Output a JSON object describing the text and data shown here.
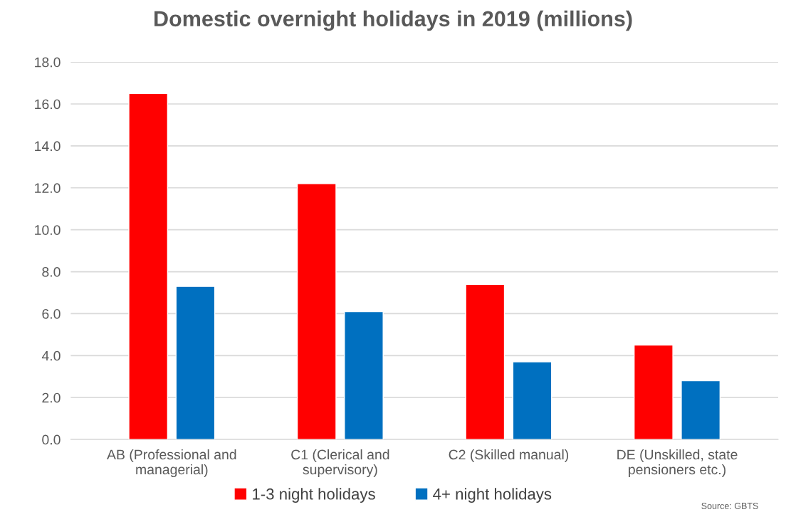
{
  "chart_data": {
    "type": "bar",
    "title": "Domestic overnight holidays in 2019 (millions)",
    "categories": [
      "AB (Professional and managerial)",
      "C1 (Clerical and supervisory)",
      "C2 (Skilled manual)",
      "DE (Unskilled, state pensioners etc.)"
    ],
    "series": [
      {
        "name": "1-3 night holidays",
        "color": "#ff0000",
        "values": [
          16.5,
          12.2,
          7.4,
          4.5
        ]
      },
      {
        "name": "4+ night holidays",
        "color": "#0070c0",
        "values": [
          7.3,
          6.1,
          3.7,
          2.8
        ]
      }
    ],
    "ylim": [
      0,
      18
    ],
    "yticks": [
      {
        "value": 0,
        "label": "0.0"
      },
      {
        "value": 2,
        "label": "2.0"
      },
      {
        "value": 4,
        "label": "4.0"
      },
      {
        "value": 6,
        "label": "6.0"
      },
      {
        "value": 8,
        "label": "8.0"
      },
      {
        "value": 10,
        "label": "10.0"
      },
      {
        "value": 12,
        "label": "12.0"
      },
      {
        "value": 14,
        "label": "14.0"
      },
      {
        "value": 16,
        "label": "16.0"
      },
      {
        "value": 18,
        "label": "18.0"
      }
    ],
    "grid": "y",
    "legend": "bottom",
    "annotations": [
      "Source: GBTS"
    ]
  }
}
